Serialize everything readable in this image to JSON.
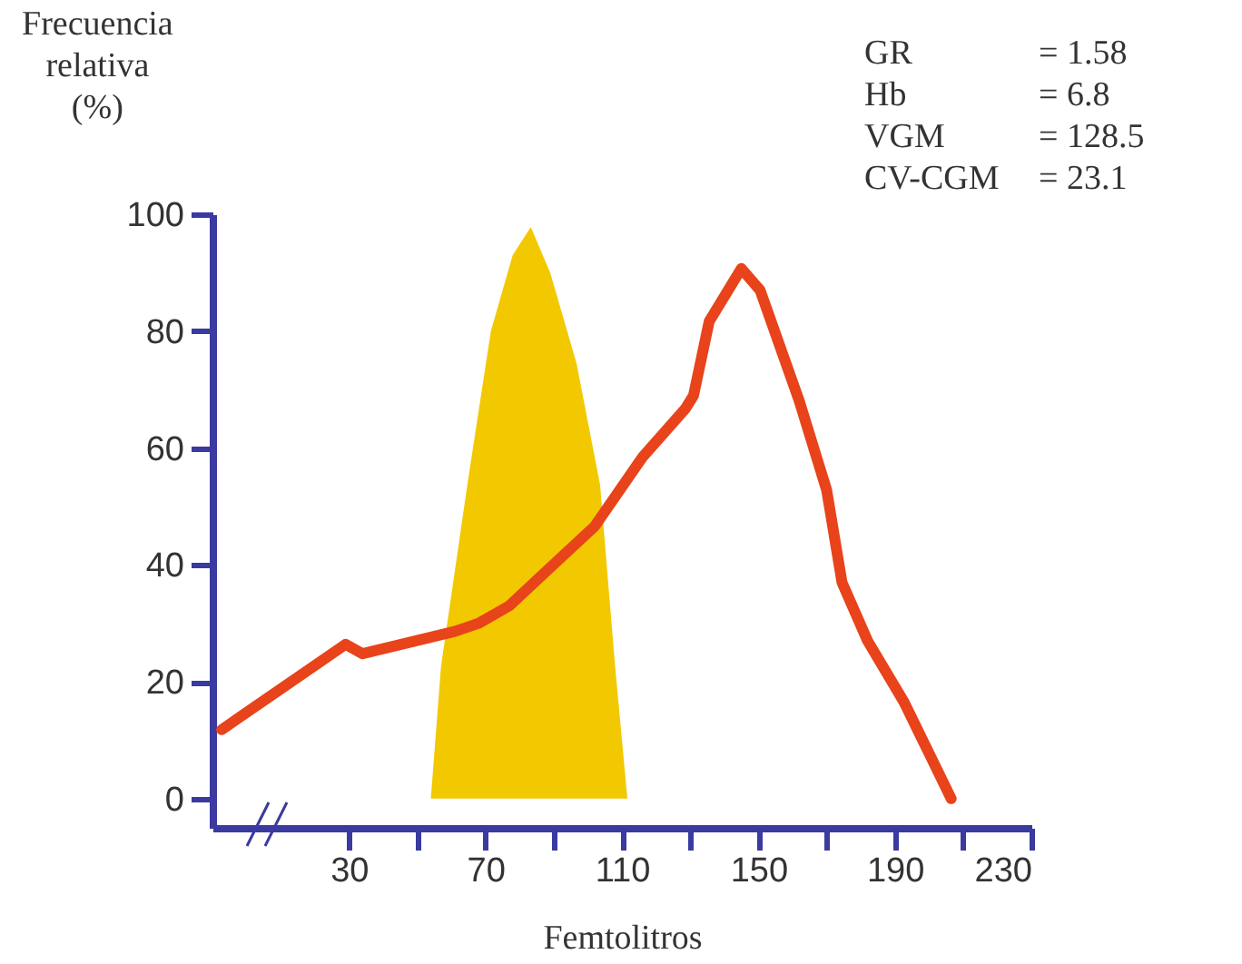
{
  "chart_data": {
    "type": "line",
    "ylabel": "Frecuencia relativa (%)",
    "xlabel": "Femtolitros",
    "annotations": [
      "GR = 1.58",
      "Hb = 6.8",
      "VGM = 128.5",
      "CV-CGM = 23.1"
    ],
    "xlim": [
      -10,
      230
    ],
    "xticks": [
      30,
      {
        "value": 50,
        "label": null
      },
      70,
      {
        "value": 90,
        "label": null
      },
      110,
      {
        "value": 130,
        "label": null
      },
      150,
      {
        "value": 170,
        "label": null
      },
      190,
      {
        "value": 210,
        "label": null
      },
      230
    ],
    "ylim": [
      -5,
      100
    ],
    "yticks": [
      0,
      20,
      40,
      60,
      80,
      100
    ],
    "series": [
      {
        "type": "area",
        "color": "#f2c800",
        "x": [
          54,
          57,
          64.7,
          71.6,
          78,
          83.3,
          89,
          96.7,
          103.6,
          108,
          111.6
        ],
        "values": [
          0,
          22.7,
          53.7,
          80,
          93,
          97.8,
          90,
          74.5,
          53.7,
          22.7,
          0
        ]
      },
      {
        "color": "#e8431a",
        "x": [
          -7.3,
          29,
          34,
          61,
          68,
          77,
          87.6,
          102,
          116,
          128.7,
          131,
          135.6,
          145,
          150.5,
          162,
          170,
          174.5,
          182,
          192.7,
          206.5
        ],
        "values": [
          11.8,
          26.4,
          24.8,
          28.6,
          30,
          33,
          38.8,
          46.6,
          58.4,
          66.8,
          69,
          81.7,
          90.7,
          87,
          68,
          52.8,
          37,
          27,
          16.5,
          0
        ]
      }
    ]
  }
}
